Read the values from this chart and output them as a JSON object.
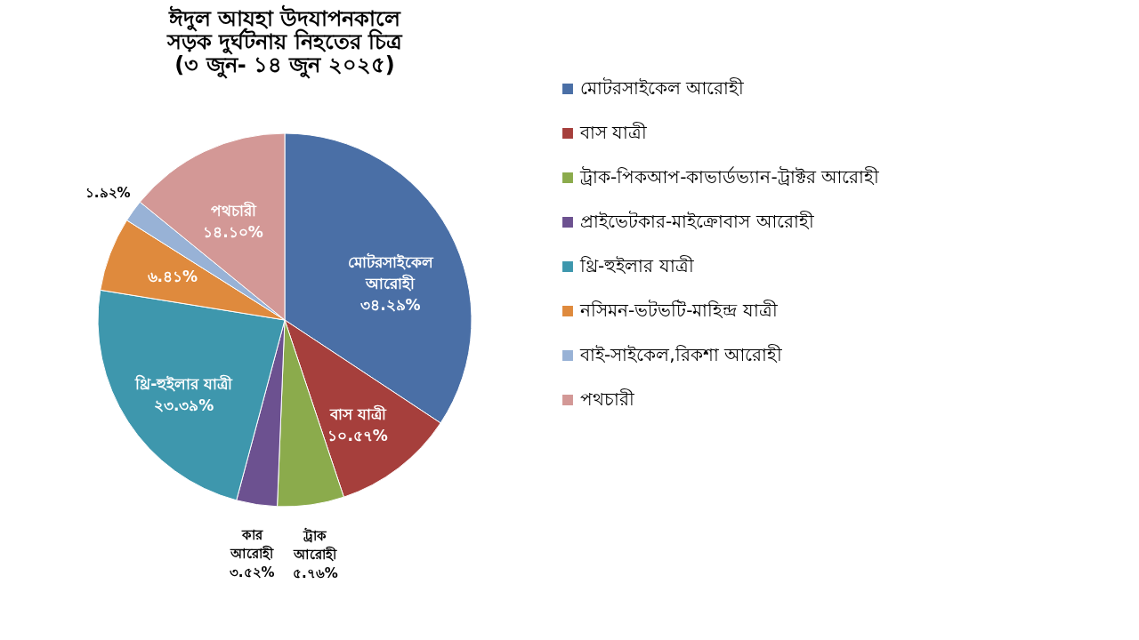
{
  "chart_data": {
    "type": "pie",
    "title": [
      "ঈদুল আযহা উদযাপনকালে",
      "সড়ক দুর্ঘটনায় নিহতের চিত্র",
      "(৩ জুন- ১৪ জুন ২০২৫)"
    ],
    "categories": [
      "মোটরসাইকেল আরোহী",
      "বাস যাত্রী",
      "ট্রাক-পিকআপ-কাভার্ডভ্যান-ট্রাক্টর আরোহী",
      "প্রাইভেটকার-মাইক্রোবাস আরোহী",
      "থ্রি-হুইলার যাত্রী",
      "নসিমন-ভটভটি-মাহিন্দ্র যাত্রী",
      "বাই-সাইকেল,রিকশা আরোহী",
      "পথচারী"
    ],
    "values": [
      34.29,
      10.57,
      5.76,
      3.52,
      23.39,
      6.41,
      1.92,
      14.1
    ],
    "colors": [
      "#4a6fa6",
      "#a63f3c",
      "#8bab4c",
      "#6c5190",
      "#3e97ad",
      "#df8a3d",
      "#98b2d6",
      "#d39896"
    ],
    "value_labels": [
      "মোটরসাইকেল\nআরোহী\n৩৪.২৯%",
      "বাস যাত্রী\n১০.৫৭%",
      "ট্রাক\nআরোহী\n৫.৭৬%",
      "কার\nআরোহী\n৩.৫২%",
      "থ্রি-হুইলার যাত্রী\n২৩.৩৯%",
      "৬.৪১%",
      "১.৯২%",
      "পথচারী\n১৪.১০%"
    ],
    "legend": "right"
  }
}
